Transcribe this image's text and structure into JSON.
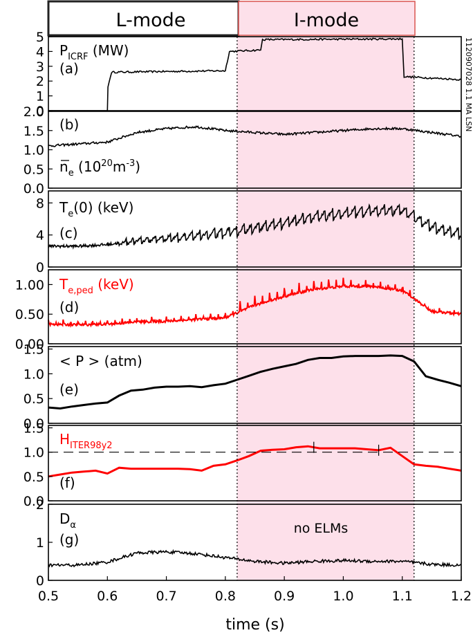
{
  "header": {
    "l_mode_label": "L-mode",
    "i_mode_label": "I-mode",
    "l_mode_range": [
      0.5,
      0.82
    ],
    "i_mode_range": [
      0.82,
      1.12
    ],
    "i_mode_fill_color": "#fde0ea",
    "i_mode_border_color": "#d9534f"
  },
  "shot_label": "1120907028 1.1 MA LSN",
  "xaxis": {
    "label": "time (s)",
    "range": [
      0.5,
      1.2
    ],
    "ticks": [
      "0.5",
      "0.6",
      "0.7",
      "0.8",
      "0.9",
      "1.0",
      "1.1",
      "1.2"
    ],
    "tick_values": [
      0.5,
      0.6,
      0.7,
      0.8,
      0.9,
      1.0,
      1.1,
      1.2
    ]
  },
  "markers": {
    "transition_times": [
      0.82,
      1.12
    ]
  },
  "chart_data": [
    {
      "type": "line",
      "panel": "(a)",
      "label_main": "P",
      "label_sub": "ICRF",
      "label_tail": " (MW)",
      "color": "#000000",
      "ylim": [
        0,
        5
      ],
      "ticks": [
        "0",
        "1",
        "2",
        "3",
        "4",
        "5"
      ],
      "tick_values": [
        0,
        1,
        2,
        3,
        4,
        5
      ],
      "series": [
        {
          "x": [
            0.5,
            0.6,
            0.601,
            0.607,
            0.8,
            0.807,
            0.86,
            0.863,
            1.1,
            1.103,
            1.2
          ],
          "y": [
            0,
            0,
            1.6,
            2.6,
            2.7,
            4.0,
            4.1,
            4.8,
            4.85,
            2.3,
            2.1
          ]
        }
      ]
    },
    {
      "type": "line",
      "panel": "(b)",
      "label_main": "n",
      "label_sub": "e",
      "label_tail": " (10",
      "label_sup": "20",
      "label_end": "m",
      "label_sup2": "-3",
      "label_close": ")",
      "color": "#000000",
      "ylim": [
        0,
        2.0
      ],
      "ticks": [
        "0.0",
        "0.5",
        "1.0",
        "1.5",
        "2.0"
      ],
      "tick_values": [
        0,
        0.5,
        1.0,
        1.5,
        2.0
      ],
      "series": [
        {
          "x": [
            0.5,
            0.55,
            0.6,
            0.65,
            0.7,
            0.75,
            0.8,
            0.85,
            0.9,
            0.95,
            1.0,
            1.05,
            1.1,
            1.15,
            1.2
          ],
          "y": [
            1.1,
            1.15,
            1.2,
            1.45,
            1.55,
            1.6,
            1.5,
            1.45,
            1.4,
            1.45,
            1.5,
            1.55,
            1.55,
            1.45,
            1.35
          ]
        }
      ]
    },
    {
      "type": "line",
      "panel": "(c)",
      "label_main": "T",
      "label_sub": "e",
      "label_tail": "(0) (keV)",
      "color": "#000000",
      "ylim": [
        0,
        9.5
      ],
      "ticks": [
        "0",
        "4",
        "8"
      ],
      "tick_values": [
        0,
        4,
        8
      ],
      "series": [
        {
          "x": [
            0.5,
            0.55,
            0.6,
            0.65,
            0.7,
            0.75,
            0.8,
            0.85,
            0.9,
            0.95,
            1.0,
            1.05,
            1.1,
            1.15,
            1.2
          ],
          "y": [
            2.6,
            2.6,
            2.8,
            3.3,
            3.6,
            3.9,
            4.3,
            4.9,
            5.5,
            6.3,
            6.7,
            7.0,
            7.1,
            5.0,
            4.0
          ]
        }
      ],
      "sawtooth": {
        "start": 0.62,
        "period": 0.0125,
        "amplitude": 1.4
      }
    },
    {
      "type": "line",
      "panel": "(d)",
      "label_main": "T",
      "label_sub": "e,ped",
      "label_tail": " (keV)",
      "color": "#ff0000",
      "ylim": [
        0,
        1.25
      ],
      "ticks": [
        "0.00",
        "0.50",
        "1.00"
      ],
      "tick_values": [
        0,
        0.5,
        1.0
      ],
      "series": [
        {
          "x": [
            0.5,
            0.55,
            0.6,
            0.65,
            0.7,
            0.75,
            0.8,
            0.85,
            0.9,
            0.95,
            1.0,
            1.05,
            1.1,
            1.15,
            1.2
          ],
          "y": [
            0.33,
            0.32,
            0.33,
            0.37,
            0.38,
            0.41,
            0.44,
            0.65,
            0.8,
            0.92,
            0.97,
            0.97,
            0.9,
            0.55,
            0.5
          ]
        }
      ],
      "spikes": {
        "period": 0.0125,
        "amplitude": 0.12
      }
    },
    {
      "type": "line",
      "panel": "(e)",
      "label_main": "< P > (atm)",
      "color": "#000000",
      "ylim": [
        0,
        1.55
      ],
      "ticks": [
        "0.0",
        "0.5",
        "1.0",
        "1.5"
      ],
      "tick_values": [
        0,
        0.5,
        1.0,
        1.5
      ],
      "series": [
        {
          "x": [
            0.5,
            0.52,
            0.54,
            0.56,
            0.58,
            0.6,
            0.62,
            0.64,
            0.66,
            0.68,
            0.7,
            0.72,
            0.74,
            0.76,
            0.78,
            0.8,
            0.82,
            0.84,
            0.86,
            0.88,
            0.9,
            0.92,
            0.94,
            0.96,
            0.98,
            1.0,
            1.02,
            1.04,
            1.06,
            1.08,
            1.1,
            1.12,
            1.14,
            1.16,
            1.18,
            1.2
          ],
          "y": [
            0.32,
            0.3,
            0.34,
            0.37,
            0.4,
            0.42,
            0.56,
            0.66,
            0.68,
            0.72,
            0.74,
            0.74,
            0.75,
            0.73,
            0.77,
            0.8,
            0.88,
            0.96,
            1.04,
            1.1,
            1.15,
            1.2,
            1.28,
            1.32,
            1.32,
            1.35,
            1.36,
            1.36,
            1.36,
            1.37,
            1.36,
            1.25,
            0.95,
            0.88,
            0.82,
            0.75
          ]
        }
      ]
    },
    {
      "type": "line",
      "panel": "(f)",
      "label_main": "H",
      "label_sub": "ITER98y2",
      "color": "#ff0000",
      "ylim": [
        0,
        1.55
      ],
      "ticks": [
        "0.0",
        "0.5",
        "1.0",
        "1.5"
      ],
      "tick_values": [
        0,
        0.5,
        1.0,
        1.5
      ],
      "reference_line": 1.0,
      "error_bar_x": [
        0.95,
        1.06
      ],
      "series": [
        {
          "x": [
            0.5,
            0.52,
            0.54,
            0.56,
            0.58,
            0.6,
            0.62,
            0.64,
            0.66,
            0.68,
            0.7,
            0.72,
            0.74,
            0.76,
            0.78,
            0.8,
            0.82,
            0.84,
            0.86,
            0.88,
            0.9,
            0.92,
            0.94,
            0.96,
            0.98,
            1.0,
            1.02,
            1.04,
            1.06,
            1.08,
            1.1,
            1.12,
            1.14,
            1.16,
            1.18,
            1.2
          ],
          "y": [
            0.5,
            0.54,
            0.58,
            0.6,
            0.62,
            0.56,
            0.68,
            0.66,
            0.66,
            0.66,
            0.66,
            0.66,
            0.65,
            0.62,
            0.72,
            0.75,
            0.83,
            0.92,
            1.03,
            1.05,
            1.06,
            1.1,
            1.12,
            1.08,
            1.08,
            1.08,
            1.08,
            1.06,
            1.04,
            1.09,
            0.92,
            0.75,
            0.72,
            0.7,
            0.66,
            0.62
          ]
        }
      ]
    },
    {
      "type": "line",
      "panel": "(g)",
      "label_main": "D",
      "label_sub": "α",
      "annotation": "no ELMs",
      "color": "#000000",
      "ylim": [
        0,
        2
      ],
      "ticks": [
        "0",
        "1",
        "2"
      ],
      "tick_values": [
        0,
        1,
        2
      ],
      "series": [
        {
          "x": [
            0.5,
            0.55,
            0.6,
            0.65,
            0.7,
            0.75,
            0.8,
            0.85,
            0.9,
            0.95,
            1.0,
            1.05,
            1.1,
            1.15,
            1.2
          ],
          "y": [
            0.4,
            0.4,
            0.48,
            0.72,
            0.75,
            0.7,
            0.6,
            0.5,
            0.45,
            0.5,
            0.52,
            0.5,
            0.5,
            0.42,
            0.4
          ]
        }
      ]
    }
  ]
}
